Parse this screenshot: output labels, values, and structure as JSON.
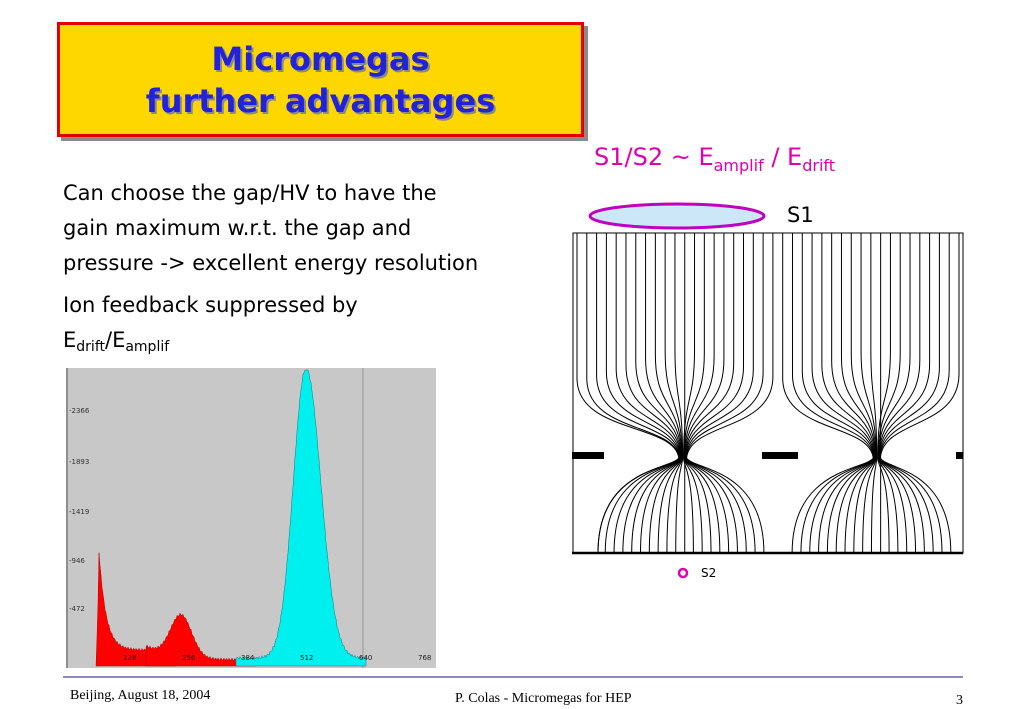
{
  "title": {
    "line1": "Micromegas",
    "line2": "further advantages"
  },
  "body": {
    "paragraph1": [
      "Can choose the gap/HV to have the",
      "gain maximum w.r.t. the gap and",
      "pressure -> excellent energy resolution"
    ],
    "p2_line1": "Ion feedback suppressed by",
    "p2_e1": "E",
    "p2_drift": "drift",
    "p2_slash": "/E",
    "p2_amplif": "amplif"
  },
  "formula": {
    "s_ratio": "S1/S2 ~ E",
    "amplif": "amplif",
    "sep": " / E",
    "drift": "drift"
  },
  "diagram": {
    "s1_label": "S1",
    "s2_label": "S2"
  },
  "spectrum": {
    "y_ticks": [
      "2366",
      "1893",
      "1419",
      "946",
      "472"
    ],
    "x_ticks": [
      "128",
      "256",
      "384",
      "512",
      "640",
      "768"
    ]
  },
  "footer": {
    "left": "Beijing, August 18, 2004",
    "center": "P. Colas - Micromegas for HEP",
    "page": "3"
  },
  "colors": {
    "title_bg": "#ffd700",
    "title_border": "#e00000",
    "title_text": "#2222d8",
    "formula": "#e000b0",
    "peak_cyan": "#00f0f0",
    "peak_red": "#ff0000"
  }
}
